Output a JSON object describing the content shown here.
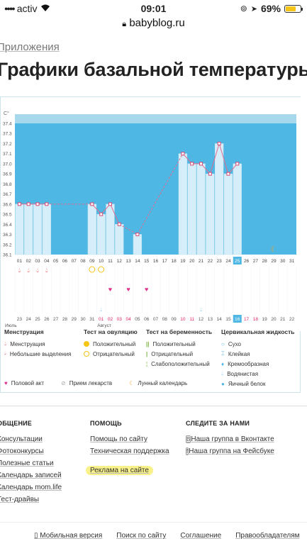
{
  "status": {
    "carrier": "activ",
    "time": "09:01",
    "battery": "69%",
    "battery_level": 0.69,
    "url": "babyblog.ru"
  },
  "breadcrumb": "Приложения",
  "page_title": "Графики базальной температуры",
  "colors": {
    "chart_bg": "#a8d8ec",
    "plot_bg": "#4fb7e3",
    "bar": "#d6eefa",
    "line": "#e26a8f",
    "marker": "#d94a72",
    "highlight": "#f9f28a"
  },
  "chart_data": {
    "type": "bar",
    "ylabel": "C°",
    "ylim": [
      36.1,
      37.4
    ],
    "yticks": [
      "36.1",
      "36.2",
      "36.3",
      "36.4",
      "36.5",
      "36.6",
      "36.7",
      "36.8",
      "36.9",
      "37.0",
      "37.1",
      "37.2",
      "37.3",
      "37.4"
    ],
    "days": [
      "01",
      "02",
      "03",
      "04",
      "05",
      "06",
      "07",
      "08",
      "09",
      "10",
      "11",
      "12",
      "13",
      "14",
      "15",
      "16",
      "17",
      "18",
      "19",
      "20",
      "21",
      "22",
      "23",
      "24",
      "25",
      "26",
      "27",
      "28",
      "29",
      "30",
      "31"
    ],
    "highlighted_day": "25",
    "values": [
      36.6,
      36.6,
      36.6,
      36.6,
      null,
      null,
      null,
      null,
      36.6,
      36.5,
      36.6,
      36.4,
      null,
      36.3,
      null,
      null,
      null,
      null,
      37.1,
      37.0,
      37.0,
      36.9,
      37.2,
      36.9,
      37.0,
      null,
      null,
      null,
      null,
      null,
      null
    ],
    "cycle_dates": [
      "23",
      "24",
      "25",
      "26",
      "27",
      "28",
      "29",
      "30",
      "31",
      "01",
      "02",
      "03",
      "04",
      "05",
      "06",
      "07",
      "08",
      "09",
      "10",
      "11",
      "12",
      "13",
      "14",
      "15",
      "16",
      "17",
      "18",
      "19",
      "20",
      "21",
      "22"
    ],
    "cycle_dates_red": [
      "23",
      "24",
      "25",
      "26",
      "27",
      "28",
      "29",
      "30",
      "31",
      "01",
      "02",
      "03",
      "04",
      "05",
      "06",
      "07",
      "08",
      "09",
      "10",
      "11",
      "12",
      "13",
      "14",
      "15",
      "16",
      "17",
      "18",
      "19",
      "20",
      "21",
      "22"
    ],
    "highlighted_cycle_date": "16",
    "month_labels": {
      "first": "Июль",
      "second": "Август"
    },
    "menstruation_days": [
      "01",
      "02",
      "03",
      "04"
    ],
    "ovulation_test_days": [
      "09",
      "10"
    ],
    "intercourse_days": [
      "11",
      "13",
      "15"
    ],
    "cervical_drop_days": [
      "10",
      "21"
    ],
    "moon_day": "29"
  },
  "legend": {
    "menstruation": {
      "title": "Менструация",
      "items": [
        "Менструация",
        "Небольшие выделения"
      ]
    },
    "ovulation": {
      "title": "Тест на овуляцию",
      "items": [
        "Положительный",
        "Отрицательный"
      ]
    },
    "pregnancy": {
      "title": "Тест на беременность",
      "items": [
        "Положительный",
        "Отрицательный",
        "Слабоположительный"
      ]
    },
    "cervical": {
      "title": "Цервикальная жидкость",
      "items": [
        "Сухо",
        "Клейкая",
        "Кремообразная",
        "Водянистая",
        "Яичный белок"
      ]
    },
    "bottom": [
      "Половой акт",
      "Прием лекарств",
      "Лунный календарь"
    ]
  },
  "footer": {
    "col1": {
      "title": "ОБЩЕНИЕ",
      "links": [
        "Консультации",
        "Фотоконкурсы",
        "Полезные статьи",
        "Календарь записей",
        "Календарь mom.life",
        "Тест-драйвы"
      ]
    },
    "col2": {
      "title": "ПОМОЩЬ",
      "links": [
        "Помощь по сайту",
        "Техническая поддержка",
        "Реклама на сайте"
      ]
    },
    "col3": {
      "title": "СЛЕДИТЕ ЗА НАМИ",
      "links": [
        "Наша группа в Вконтакте",
        "Наша группа на Фейсбуке"
      ]
    },
    "bottom_links": [
      "Мобильная версия",
      "Поиск по сайту",
      "Соглашение",
      "Правообладателям"
    ]
  }
}
